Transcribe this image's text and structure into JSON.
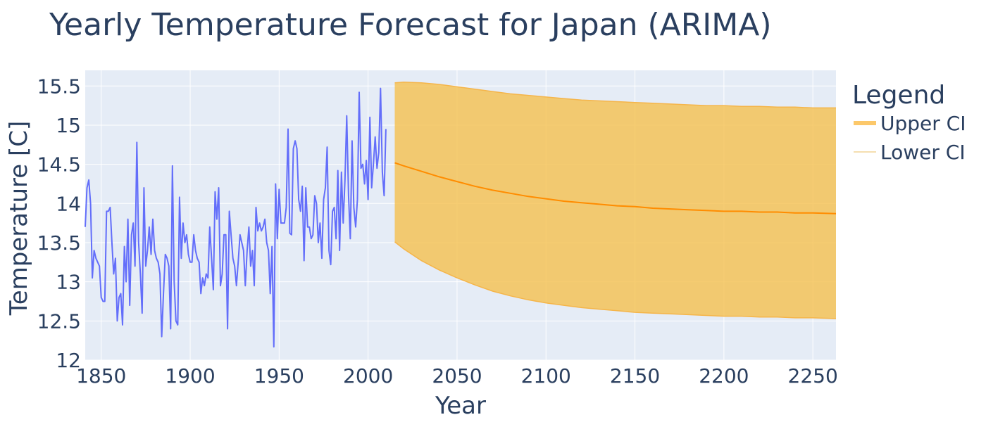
{
  "chart_data": {
    "type": "line",
    "title": "Yearly Temperature Forecast for Japan (ARIMA)",
    "xlabel": "Year",
    "ylabel": "Temperature [C]",
    "xlim": [
      1841,
      2263
    ],
    "ylim": [
      12,
      15.7
    ],
    "xticks": [
      1850,
      1900,
      1950,
      2000,
      2050,
      2100,
      2150,
      2200,
      2250
    ],
    "yticks": [
      {
        "value": 12,
        "label": "12"
      },
      {
        "value": 12.5,
        "label": "12.5"
      },
      {
        "value": 13,
        "label": "13"
      },
      {
        "value": 13.5,
        "label": "13.5"
      },
      {
        "value": 14,
        "label": "14"
      },
      {
        "value": 14.5,
        "label": "14.5"
      },
      {
        "value": 15,
        "label": "15"
      },
      {
        "value": 15.5,
        "label": "15.5"
      }
    ],
    "grid": true,
    "legend": {
      "title": "Legend",
      "position": "right",
      "entries": [
        "Upper CI",
        "Lower CI"
      ]
    },
    "colors": {
      "background": "#e5ecf6",
      "grid": "#ffffff",
      "observed": "#636efa",
      "forecast": "#ff8c00",
      "ci_fill": "#f5c04f",
      "ci_edge": "#f5b54a",
      "legend_upper": "#fcc86a",
      "legend_lower": "#f5dfb0",
      "text": "#2a3f5f"
    },
    "series": [
      {
        "role": "observed",
        "x_start": 1841,
        "values": [
          13.7,
          14.2,
          14.3,
          14.0,
          13.05,
          13.4,
          13.3,
          13.25,
          13.2,
          12.8,
          12.75,
          12.75,
          13.9,
          13.9,
          13.95,
          13.5,
          13.1,
          13.3,
          12.5,
          12.8,
          12.85,
          12.45,
          13.45,
          13.0,
          13.8,
          12.7,
          13.6,
          13.75,
          13.2,
          14.78,
          13.5,
          13.1,
          12.6,
          14.2,
          13.2,
          13.4,
          13.7,
          13.35,
          13.8,
          13.4,
          13.3,
          13.25,
          13.1,
          12.3,
          12.85,
          13.35,
          13.3,
          13.2,
          12.4,
          14.48,
          13.0,
          12.5,
          12.45,
          14.08,
          13.3,
          13.75,
          13.5,
          13.6,
          13.35,
          13.25,
          13.25,
          13.6,
          13.4,
          13.3,
          13.25,
          12.85,
          13.05,
          12.95,
          13.1,
          13.05,
          13.7,
          13.3,
          12.9,
          14.15,
          13.8,
          14.2,
          12.95,
          13.1,
          13.6,
          13.6,
          12.4,
          13.9,
          13.6,
          13.3,
          13.2,
          12.95,
          13.25,
          13.6,
          13.5,
          13.4,
          12.95,
          13.4,
          13.7,
          13.2,
          13.4,
          12.95,
          13.95,
          13.65,
          13.75,
          13.65,
          13.7,
          13.8,
          13.5,
          13.4,
          12.85,
          13.45,
          12.17,
          14.25,
          13.55,
          14.18,
          13.75,
          13.75,
          13.75,
          13.95,
          14.95,
          13.62,
          13.6,
          14.7,
          14.8,
          14.7,
          14.05,
          13.9,
          14.22,
          13.27,
          14.2,
          13.7,
          13.7,
          13.55,
          13.6,
          14.1,
          14.0,
          13.5,
          13.75,
          13.3,
          14.05,
          14.2,
          14.72,
          13.4,
          13.22,
          13.9,
          13.95,
          13.55,
          14.42,
          13.4,
          14.4,
          13.75,
          14.3,
          15.12,
          14.1,
          13.55,
          14.8,
          13.95,
          13.7,
          14.05,
          15.42,
          14.45,
          14.5,
          14.25,
          14.55,
          14.05,
          15.1,
          14.2,
          14.5,
          14.85,
          14.45,
          14.65,
          15.47,
          14.4,
          14.1,
          14.95
        ]
      },
      {
        "role": "forecast",
        "name": "",
        "x": [
          2015,
          2020,
          2030,
          2040,
          2050,
          2060,
          2070,
          2080,
          2090,
          2100,
          2110,
          2120,
          2130,
          2140,
          2150,
          2160,
          2170,
          2180,
          2190,
          2200,
          2210,
          2220,
          2230,
          2240,
          2250,
          2263
        ],
        "values": [
          14.52,
          14.48,
          14.41,
          14.34,
          14.28,
          14.22,
          14.17,
          14.13,
          14.09,
          14.06,
          14.03,
          14.01,
          13.99,
          13.97,
          13.96,
          13.94,
          13.93,
          13.92,
          13.91,
          13.9,
          13.9,
          13.89,
          13.89,
          13.88,
          13.88,
          13.87
        ]
      },
      {
        "role": "upper_ci",
        "name": "Upper CI",
        "x": [
          2015,
          2020,
          2030,
          2040,
          2050,
          2060,
          2070,
          2080,
          2090,
          2100,
          2110,
          2120,
          2130,
          2140,
          2150,
          2160,
          2170,
          2180,
          2190,
          2200,
          2210,
          2220,
          2230,
          2240,
          2250,
          2263
        ],
        "values": [
          15.54,
          15.55,
          15.54,
          15.52,
          15.49,
          15.46,
          15.43,
          15.4,
          15.38,
          15.36,
          15.34,
          15.32,
          15.31,
          15.3,
          15.29,
          15.28,
          15.27,
          15.26,
          15.25,
          15.25,
          15.24,
          15.24,
          15.23,
          15.23,
          15.22,
          15.22
        ]
      },
      {
        "role": "lower_ci",
        "name": "Lower CI",
        "x": [
          2015,
          2020,
          2030,
          2040,
          2050,
          2060,
          2070,
          2080,
          2090,
          2100,
          2110,
          2120,
          2130,
          2140,
          2150,
          2160,
          2170,
          2180,
          2190,
          2200,
          2210,
          2220,
          2230,
          2240,
          2250,
          2263
        ],
        "values": [
          13.51,
          13.42,
          13.27,
          13.15,
          13.05,
          12.96,
          12.88,
          12.82,
          12.77,
          12.73,
          12.7,
          12.67,
          12.65,
          12.63,
          12.61,
          12.6,
          12.59,
          12.58,
          12.57,
          12.56,
          12.56,
          12.55,
          12.55,
          12.54,
          12.54,
          12.53
        ]
      }
    ]
  }
}
